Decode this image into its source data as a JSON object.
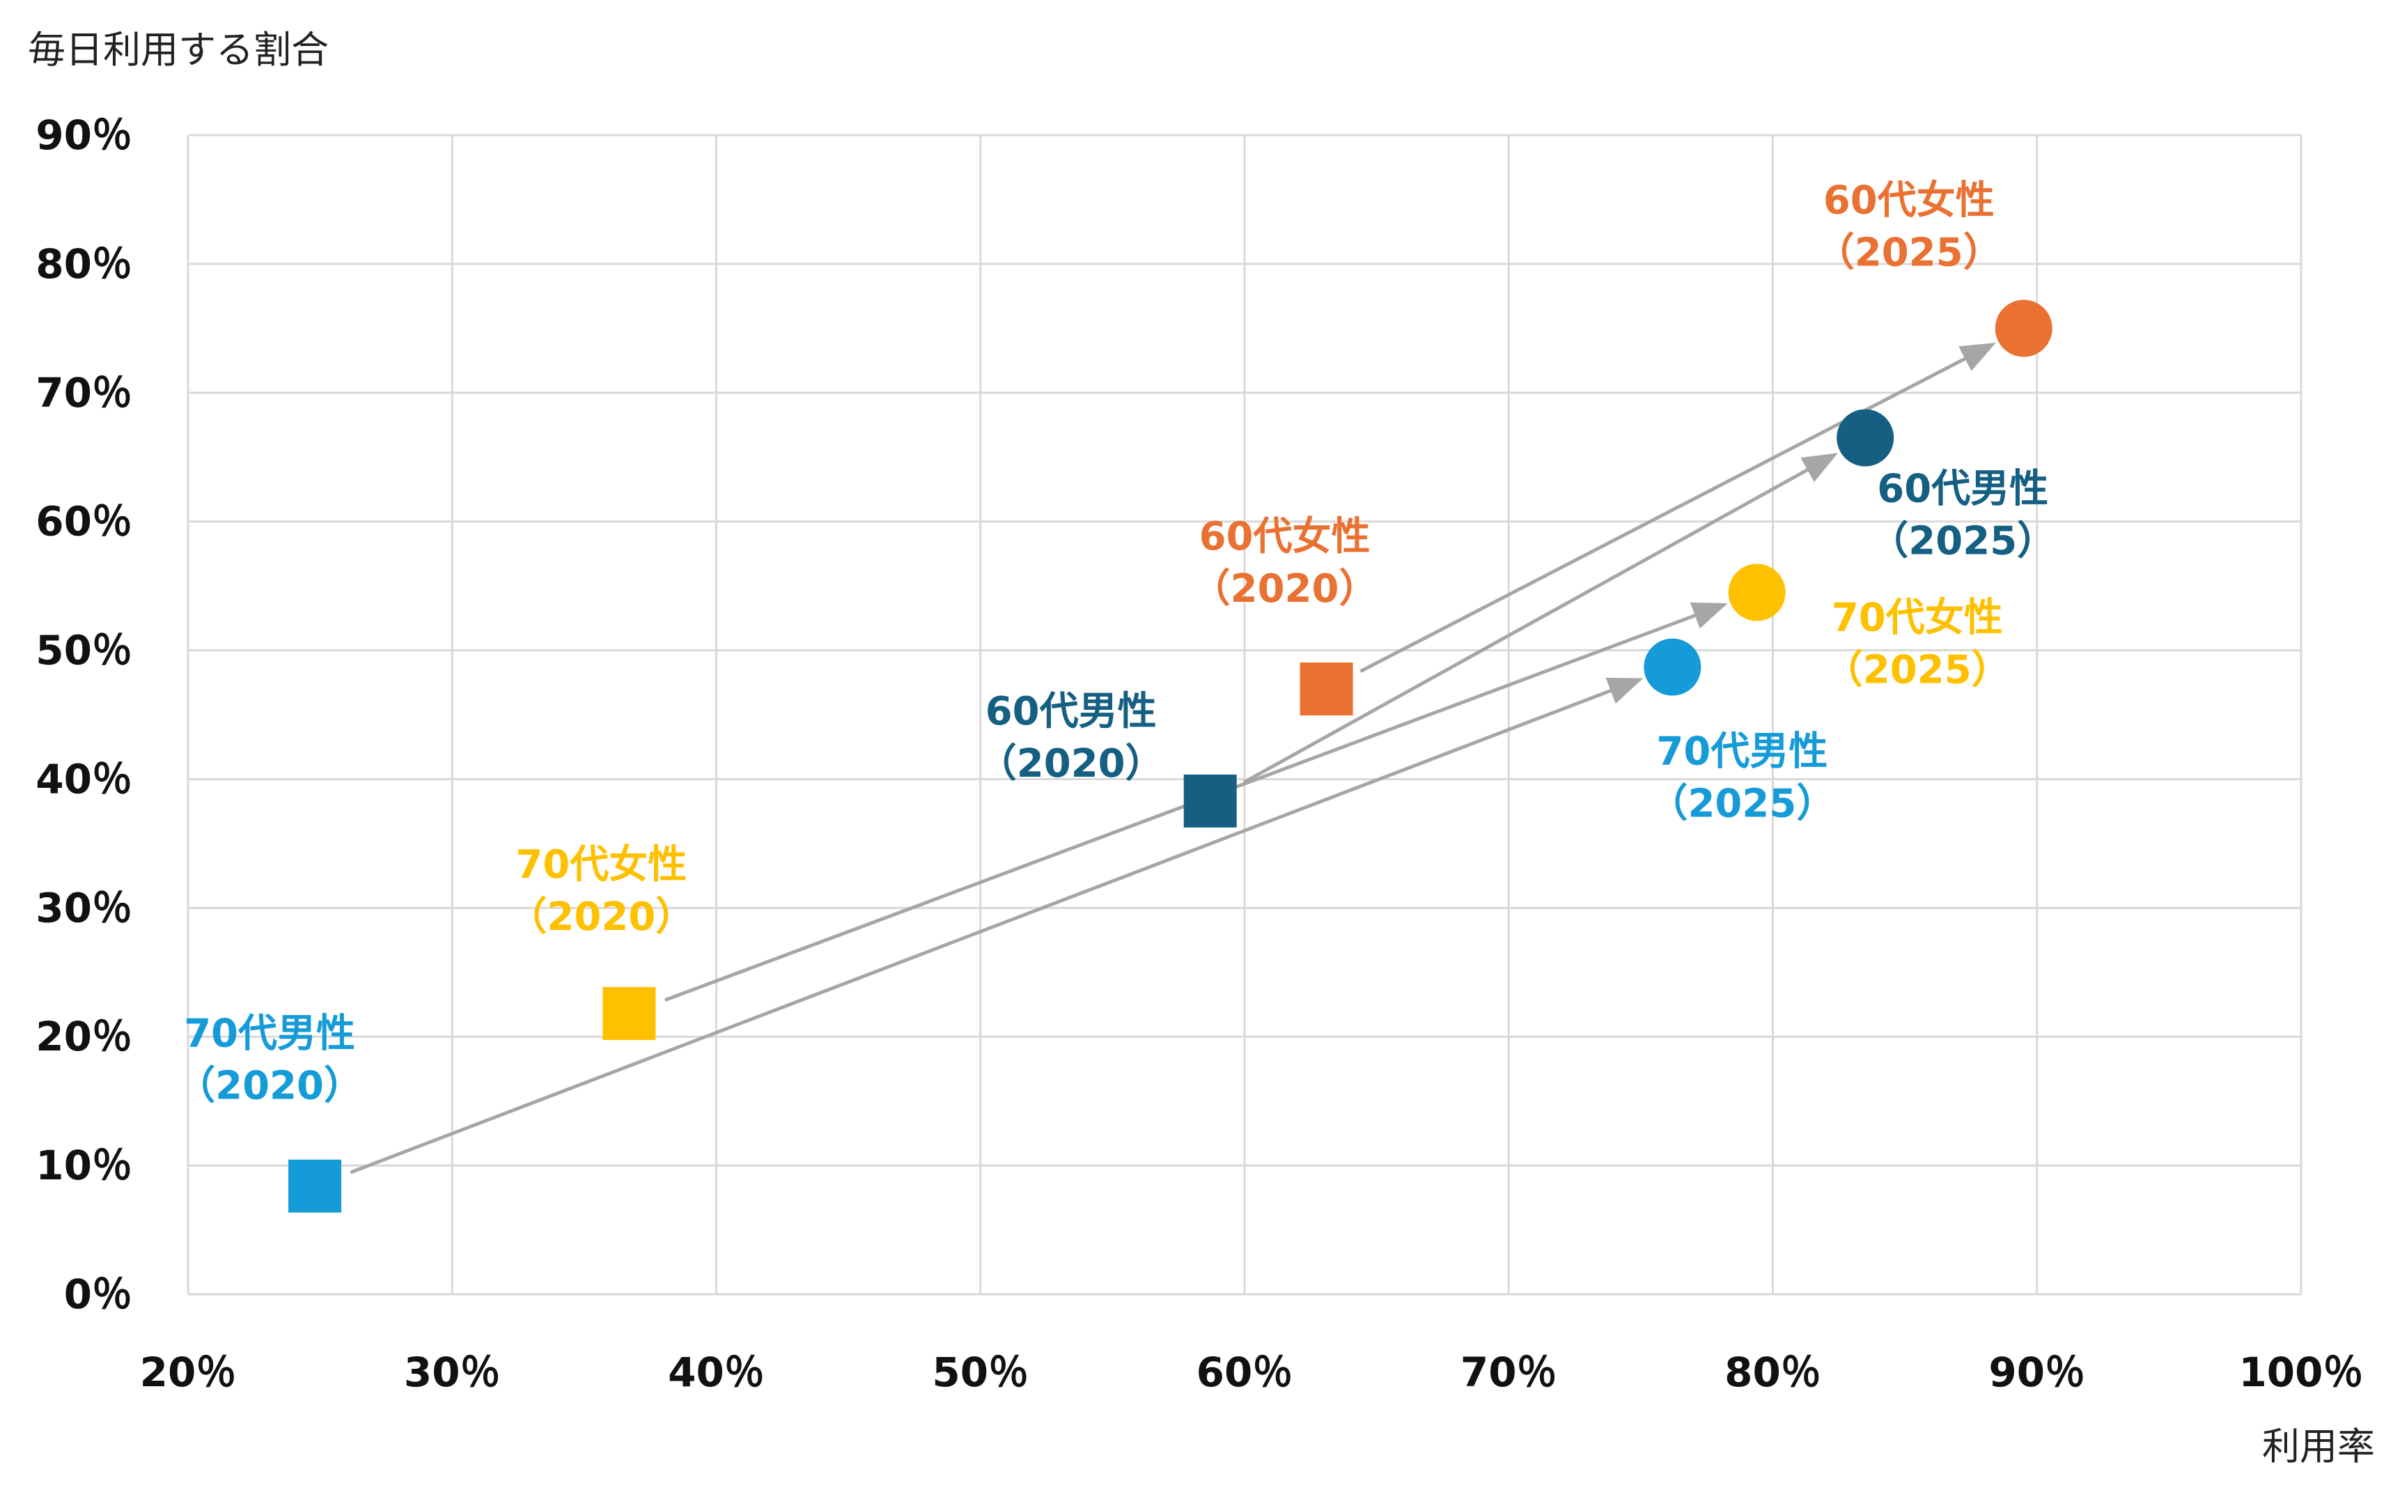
{
  "chart_data": {
    "type": "scatter",
    "ylabel": "毎日利用する割合",
    "xlabel": "利用率",
    "xlim": [
      20,
      100
    ],
    "ylim": [
      0,
      90
    ],
    "x_ticks": [
      20,
      30,
      40,
      50,
      60,
      70,
      80,
      90,
      100
    ],
    "y_ticks": [
      0,
      10,
      20,
      30,
      40,
      50,
      60,
      70,
      80,
      90
    ],
    "tick_suffix": "％",
    "grid": true,
    "legend": "none",
    "series": [
      {
        "group": "60代女性",
        "color": "#E97132",
        "points": [
          {
            "year": "2020",
            "x": 63.1,
            "y": 47.0,
            "marker": "square",
            "label": [
              "60代女性",
              "（2020）"
            ]
          },
          {
            "year": "2025",
            "x": 89.5,
            "y": 75.0,
            "marker": "circle",
            "label": [
              "60代女性",
              "（2025）"
            ]
          }
        ]
      },
      {
        "group": "60代男性",
        "color": "#145F82",
        "points": [
          {
            "year": "2020",
            "x": 58.7,
            "y": 38.3,
            "marker": "square",
            "label": [
              "60代男性",
              "（2020）"
            ]
          },
          {
            "year": "2025",
            "x": 83.5,
            "y": 66.5,
            "marker": "circle",
            "label": [
              "60代男性",
              "（2025）"
            ]
          }
        ]
      },
      {
        "group": "70代女性",
        "color": "#FFC000",
        "points": [
          {
            "year": "2020",
            "x": 36.7,
            "y": 21.8,
            "marker": "square",
            "label": [
              "70代女性",
              "（2020）"
            ]
          },
          {
            "year": "2025",
            "x": 79.4,
            "y": 54.5,
            "marker": "circle",
            "label": [
              "70代女性",
              "（2025）"
            ]
          }
        ]
      },
      {
        "group": "70代男性",
        "color": "#159BD7",
        "points": [
          {
            "year": "2020",
            "x": 24.8,
            "y": 8.4,
            "marker": "square",
            "label": [
              "70代男性",
              "（2020）"
            ]
          },
          {
            "year": "2025",
            "x": 76.2,
            "y": 48.7,
            "marker": "circle",
            "label": [
              "70代男性",
              "（2025）"
            ]
          }
        ]
      }
    ],
    "arrows_color": "#A6A6A6"
  }
}
